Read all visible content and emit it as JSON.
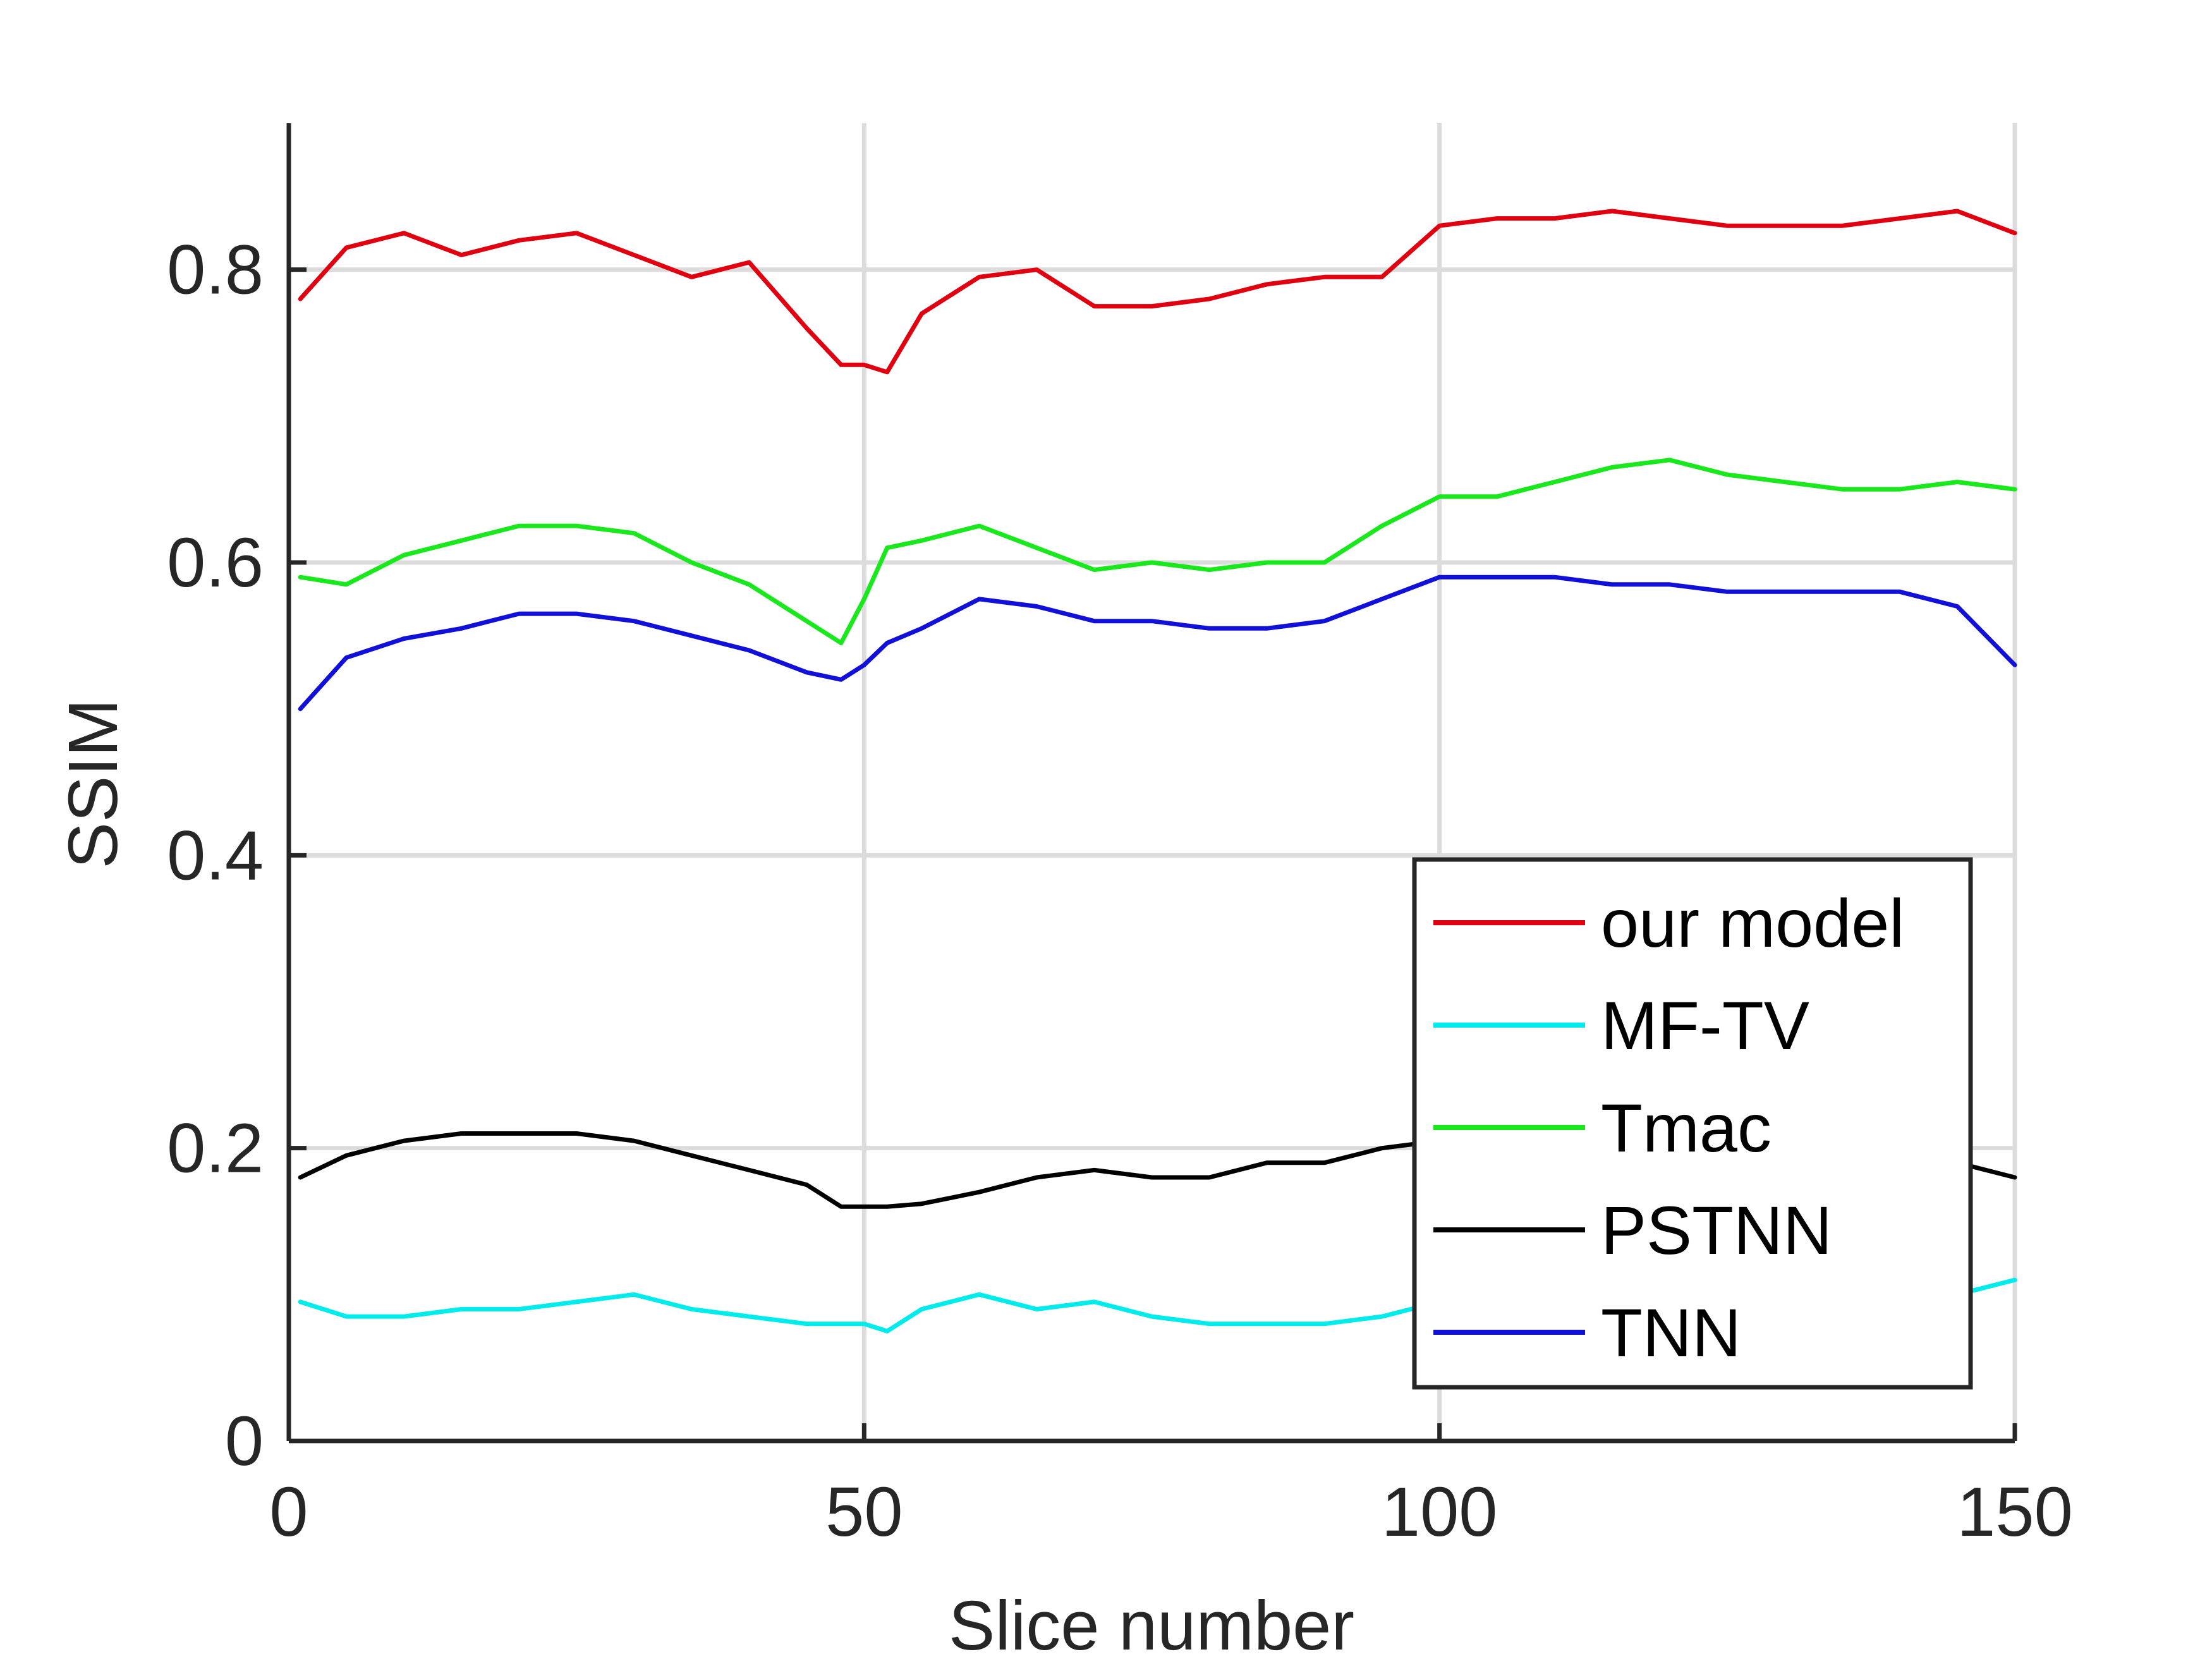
{
  "chart_data": {
    "type": "line",
    "title": "",
    "xlabel": "Slice number",
    "ylabel": "SSIM",
    "xlim": [
      0,
      150
    ],
    "ylim": [
      0,
      0.9
    ],
    "xticks": [
      0,
      50,
      100,
      150
    ],
    "xtick_labels": [
      "0",
      "50",
      "100",
      "150"
    ],
    "yticks": [
      0,
      0.2,
      0.4,
      0.6,
      0.8
    ],
    "ytick_labels": [
      "0",
      "0.2",
      "0.4",
      "0.6",
      "0.8"
    ],
    "grid": true,
    "legend_position": "bottom-right",
    "x": [
      1,
      5,
      10,
      15,
      20,
      25,
      30,
      35,
      40,
      45,
      48,
      50,
      52,
      55,
      60,
      65,
      70,
      75,
      80,
      85,
      90,
      95,
      100,
      105,
      110,
      115,
      120,
      125,
      130,
      135,
      140,
      145,
      150
    ],
    "series": [
      {
        "name": "our model",
        "color": "#e0000f",
        "values": [
          0.78,
          0.815,
          0.825,
          0.81,
          0.82,
          0.825,
          0.81,
          0.795,
          0.805,
          0.76,
          0.735,
          0.735,
          0.73,
          0.77,
          0.795,
          0.8,
          0.775,
          0.775,
          0.78,
          0.79,
          0.795,
          0.795,
          0.83,
          0.835,
          0.835,
          0.84,
          0.835,
          0.83,
          0.83,
          0.83,
          0.835,
          0.84,
          0.825
        ]
      },
      {
        "name": "MF-TV",
        "color": "#00ecec",
        "values": [
          0.095,
          0.085,
          0.085,
          0.09,
          0.09,
          0.095,
          0.1,
          0.09,
          0.085,
          0.08,
          0.08,
          0.08,
          0.075,
          0.09,
          0.1,
          0.09,
          0.095,
          0.085,
          0.08,
          0.08,
          0.08,
          0.085,
          0.095,
          0.095,
          0.095,
          0.095,
          0.095,
          0.095,
          0.095,
          0.095,
          0.095,
          0.1,
          0.11
        ]
      },
      {
        "name": "Tmac",
        "color": "#18e81c",
        "values": [
          0.59,
          0.585,
          0.605,
          0.615,
          0.625,
          0.625,
          0.62,
          0.6,
          0.585,
          0.56,
          0.545,
          0.575,
          0.61,
          0.615,
          0.625,
          0.61,
          0.595,
          0.6,
          0.595,
          0.6,
          0.6,
          0.625,
          0.645,
          0.645,
          0.655,
          0.665,
          0.67,
          0.66,
          0.655,
          0.65,
          0.65,
          0.655,
          0.65
        ]
      },
      {
        "name": "PSTNN",
        "color": "#000000",
        "values": [
          0.18,
          0.195,
          0.205,
          0.21,
          0.21,
          0.21,
          0.205,
          0.195,
          0.185,
          0.175,
          0.16,
          0.16,
          0.16,
          0.162,
          0.17,
          0.18,
          0.185,
          0.18,
          0.18,
          0.19,
          0.19,
          0.2,
          0.205,
          0.205,
          0.205,
          0.205,
          0.205,
          0.205,
          0.205,
          0.2,
          0.195,
          0.19,
          0.18
        ]
      },
      {
        "name": "TNN",
        "color": "#1010d8",
        "values": [
          0.5,
          0.535,
          0.548,
          0.555,
          0.565,
          0.565,
          0.56,
          0.55,
          0.54,
          0.525,
          0.52,
          0.53,
          0.545,
          0.555,
          0.575,
          0.57,
          0.56,
          0.56,
          0.555,
          0.555,
          0.56,
          0.575,
          0.59,
          0.59,
          0.59,
          0.585,
          0.585,
          0.58,
          0.58,
          0.58,
          0.58,
          0.57,
          0.53
        ]
      }
    ]
  }
}
